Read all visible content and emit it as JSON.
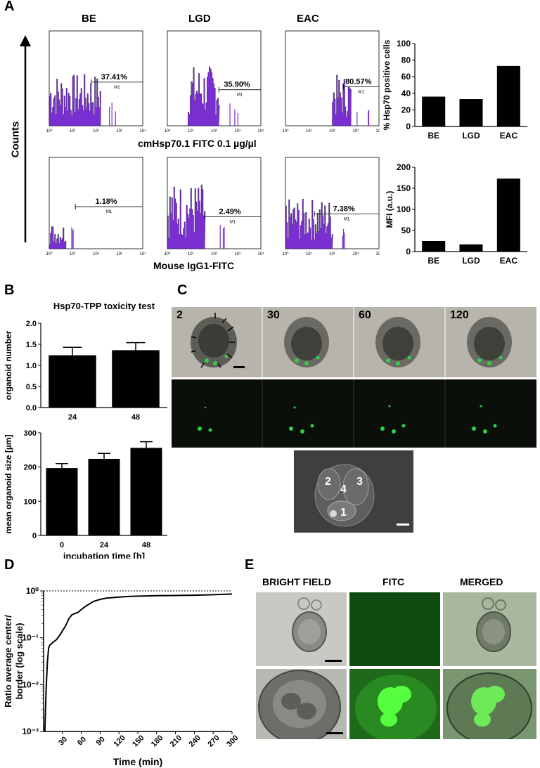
{
  "panel_letters": {
    "a": "A",
    "b": "B",
    "c": "C",
    "d": "D",
    "e": "E"
  },
  "panel_a": {
    "column_titles": [
      "BE",
      "LGD",
      "EAC"
    ],
    "y_label": "Counts",
    "row1_xlabel": "cmHsp70.1 FITC 0.1 µg/µl",
    "row2_xlabel": "Mouse IgG1-FITC",
    "row1_pct": [
      "37.41%",
      "35.90%",
      "80.57%"
    ],
    "row2_pct": [
      "1.18%",
      "2.49%",
      "7.38%"
    ],
    "gate_label": "M1",
    "hist_xticks": [
      "10⁰",
      "10¹",
      "10²",
      "10³",
      "10⁴"
    ],
    "hist_color": "#7a2fd0"
  },
  "chart_data": [
    {
      "type": "bar",
      "ylabel": "% Hsp70 positive cells",
      "categories": [
        "BE",
        "LGD",
        "EAC"
      ],
      "values": [
        36,
        33,
        73
      ],
      "ylim": [
        0,
        100
      ],
      "yticks": [
        "0",
        "20",
        "40",
        "60",
        "80",
        "100"
      ]
    },
    {
      "type": "bar",
      "ylabel": "MFI (a.u.)",
      "categories": [
        "BE",
        "LGD",
        "EAC"
      ],
      "values": [
        25,
        17,
        173
      ],
      "ylim": [
        0,
        200
      ],
      "yticks": [
        "0",
        "50",
        "100",
        "150",
        "200"
      ]
    },
    {
      "type": "bar",
      "title": "Hsp70-TPP toxicity test",
      "ylabel": "organoid number",
      "categories": [
        "24",
        "48"
      ],
      "values": [
        1.24,
        1.36
      ],
      "errors": [
        0.19,
        0.18
      ],
      "ylim": [
        0,
        2.0
      ],
      "yticks": [
        "0.0",
        "0.5",
        "1.0",
        "1.5",
        "2.0"
      ]
    },
    {
      "type": "bar",
      "ylabel": "mean organoid size [µm]",
      "xlabel": "incubation time [h]",
      "categories": [
        "0",
        "24",
        "48"
      ],
      "values": [
        197,
        224,
        256
      ],
      "errors": [
        13,
        16,
        18
      ],
      "ylim": [
        0,
        300
      ],
      "yticks": [
        "0",
        "100",
        "200",
        "300"
      ]
    },
    {
      "type": "line",
      "xlabel": "Time (min)",
      "ylabel": "Ratio average center/ border (log scale)",
      "xticks": [
        "30",
        "60",
        "90",
        "120",
        "150",
        "180",
        "210",
        "240",
        "270",
        "300"
      ],
      "yticks": [
        "10⁰",
        "10⁻¹",
        "10⁻²",
        "10⁻³"
      ],
      "xlim": [
        0,
        300
      ],
      "ylim_log10": [
        -3,
        0
      ],
      "reference_line_log10": 0,
      "series": [
        {
          "x": [
            2,
            4,
            6,
            8,
            10,
            15,
            20,
            25,
            30,
            35,
            40,
            45,
            50,
            55,
            60,
            65,
            70,
            75,
            80,
            90,
            100,
            120,
            140,
            160,
            180,
            210,
            240,
            270,
            300
          ],
          "y": [
            0.001,
            0.008,
            0.03,
            0.06,
            0.07,
            0.08,
            0.09,
            0.11,
            0.14,
            0.18,
            0.25,
            0.31,
            0.33,
            0.35,
            0.4,
            0.45,
            0.5,
            0.55,
            0.6,
            0.66,
            0.7,
            0.74,
            0.77,
            0.78,
            0.79,
            0.8,
            0.81,
            0.83,
            0.86
          ]
        }
      ]
    }
  ],
  "panel_c": {
    "time_labels": [
      "2",
      "30",
      "60",
      "120"
    ],
    "region_labels": [
      "2",
      "4",
      "3",
      "1"
    ]
  },
  "panel_e": {
    "column_titles": [
      "BRIGHT FIELD",
      "FITC",
      "MERGED"
    ]
  }
}
